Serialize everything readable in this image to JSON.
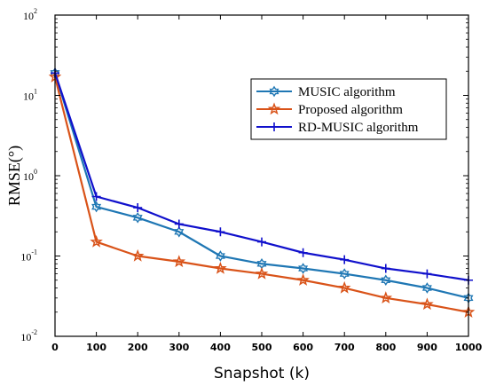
{
  "chart_data": {
    "type": "line",
    "xlabel": "Snapshot (k)",
    "ylabel": "RMSE(°)",
    "x": [
      0,
      100,
      200,
      300,
      400,
      500,
      600,
      700,
      800,
      900,
      1000
    ],
    "xticks": [
      "0",
      "100",
      "200",
      "300",
      "400",
      "500",
      "600",
      "700",
      "800",
      "900",
      "1000"
    ],
    "xlim": [
      0,
      1000
    ],
    "ylim": [
      0.01,
      100
    ],
    "yscale": "log",
    "yticks": [
      {
        "value": 0.01,
        "base": "10",
        "exp": "-2"
      },
      {
        "value": 0.1,
        "base": "10",
        "exp": "-1"
      },
      {
        "value": 1,
        "base": "10",
        "exp": "0"
      },
      {
        "value": 10,
        "base": "10",
        "exp": "1"
      },
      {
        "value": 100,
        "base": "10",
        "exp": "2"
      }
    ],
    "grid": false,
    "legend_position": "top-right",
    "series": [
      {
        "name": "MUSIC algorithm",
        "color": "#1f77b4",
        "marker": "hexagram",
        "values": [
          19,
          0.41,
          0.3,
          0.2,
          0.1,
          0.08,
          0.07,
          0.06,
          0.05,
          0.04,
          0.03
        ]
      },
      {
        "name": "Proposed algorithm",
        "color": "#d95319",
        "marker": "star",
        "values": [
          17,
          0.15,
          0.1,
          0.085,
          0.07,
          0.06,
          0.05,
          0.04,
          0.03,
          0.025,
          0.02
        ]
      },
      {
        "name": "RD-MUSIC algorithm",
        "color": "#1010cc",
        "marker": "plus",
        "values": [
          19,
          0.55,
          0.4,
          0.25,
          0.2,
          0.15,
          0.11,
          0.09,
          0.07,
          0.06,
          0.05
        ]
      }
    ]
  }
}
